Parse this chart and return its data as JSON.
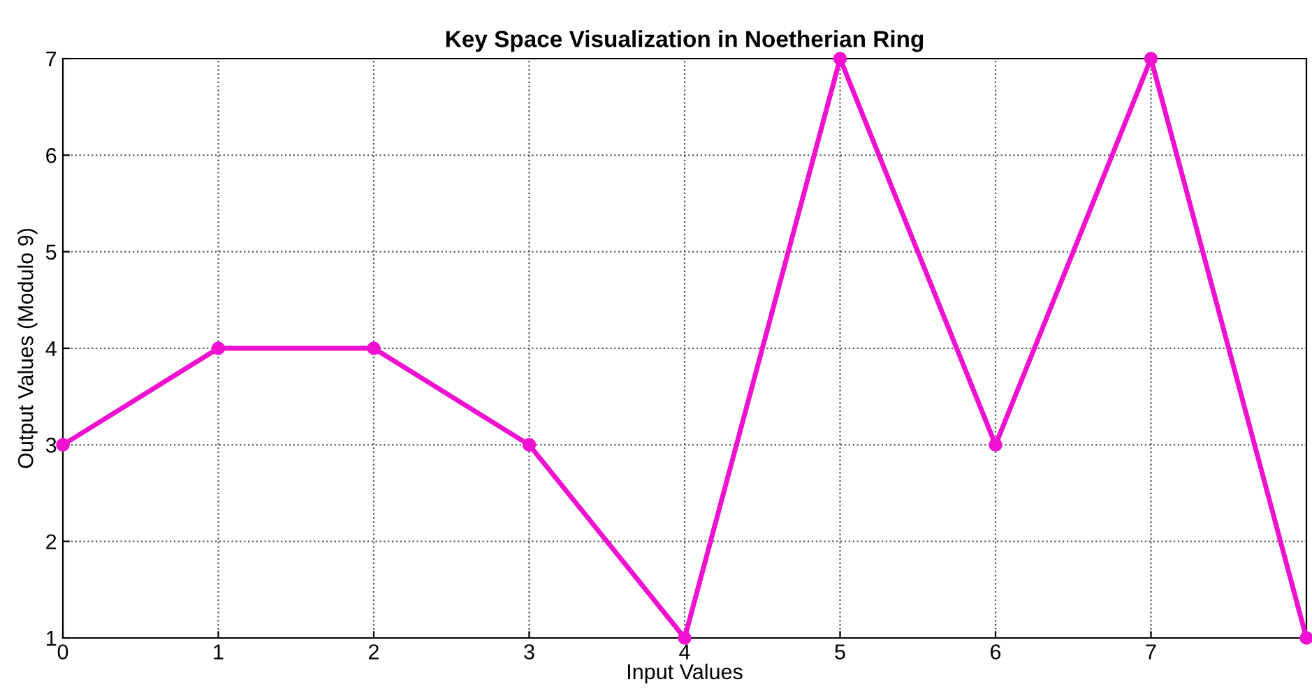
{
  "chart_data": {
    "type": "line",
    "title": "Key Space Visualization in Noetherian Ring",
    "xlabel": "Input Values",
    "ylabel": "Output Values (Modulo 9)",
    "x": [
      0,
      1,
      2,
      3,
      4,
      5,
      6,
      7,
      8
    ],
    "series": [
      {
        "color": "#f010d0",
        "values": [
          3,
          4,
          4,
          3,
          1,
          7,
          3,
          7,
          1
        ]
      }
    ],
    "xlim": [
      0,
      8
    ],
    "xticks": [
      0,
      1,
      2,
      3,
      4,
      5,
      6,
      7
    ],
    "ylim": [
      1,
      7
    ],
    "yticks": [
      1,
      2,
      3,
      4,
      5,
      6,
      7
    ],
    "grid": true,
    "marker": "circle",
    "line_style": "solid",
    "legend": false
  }
}
